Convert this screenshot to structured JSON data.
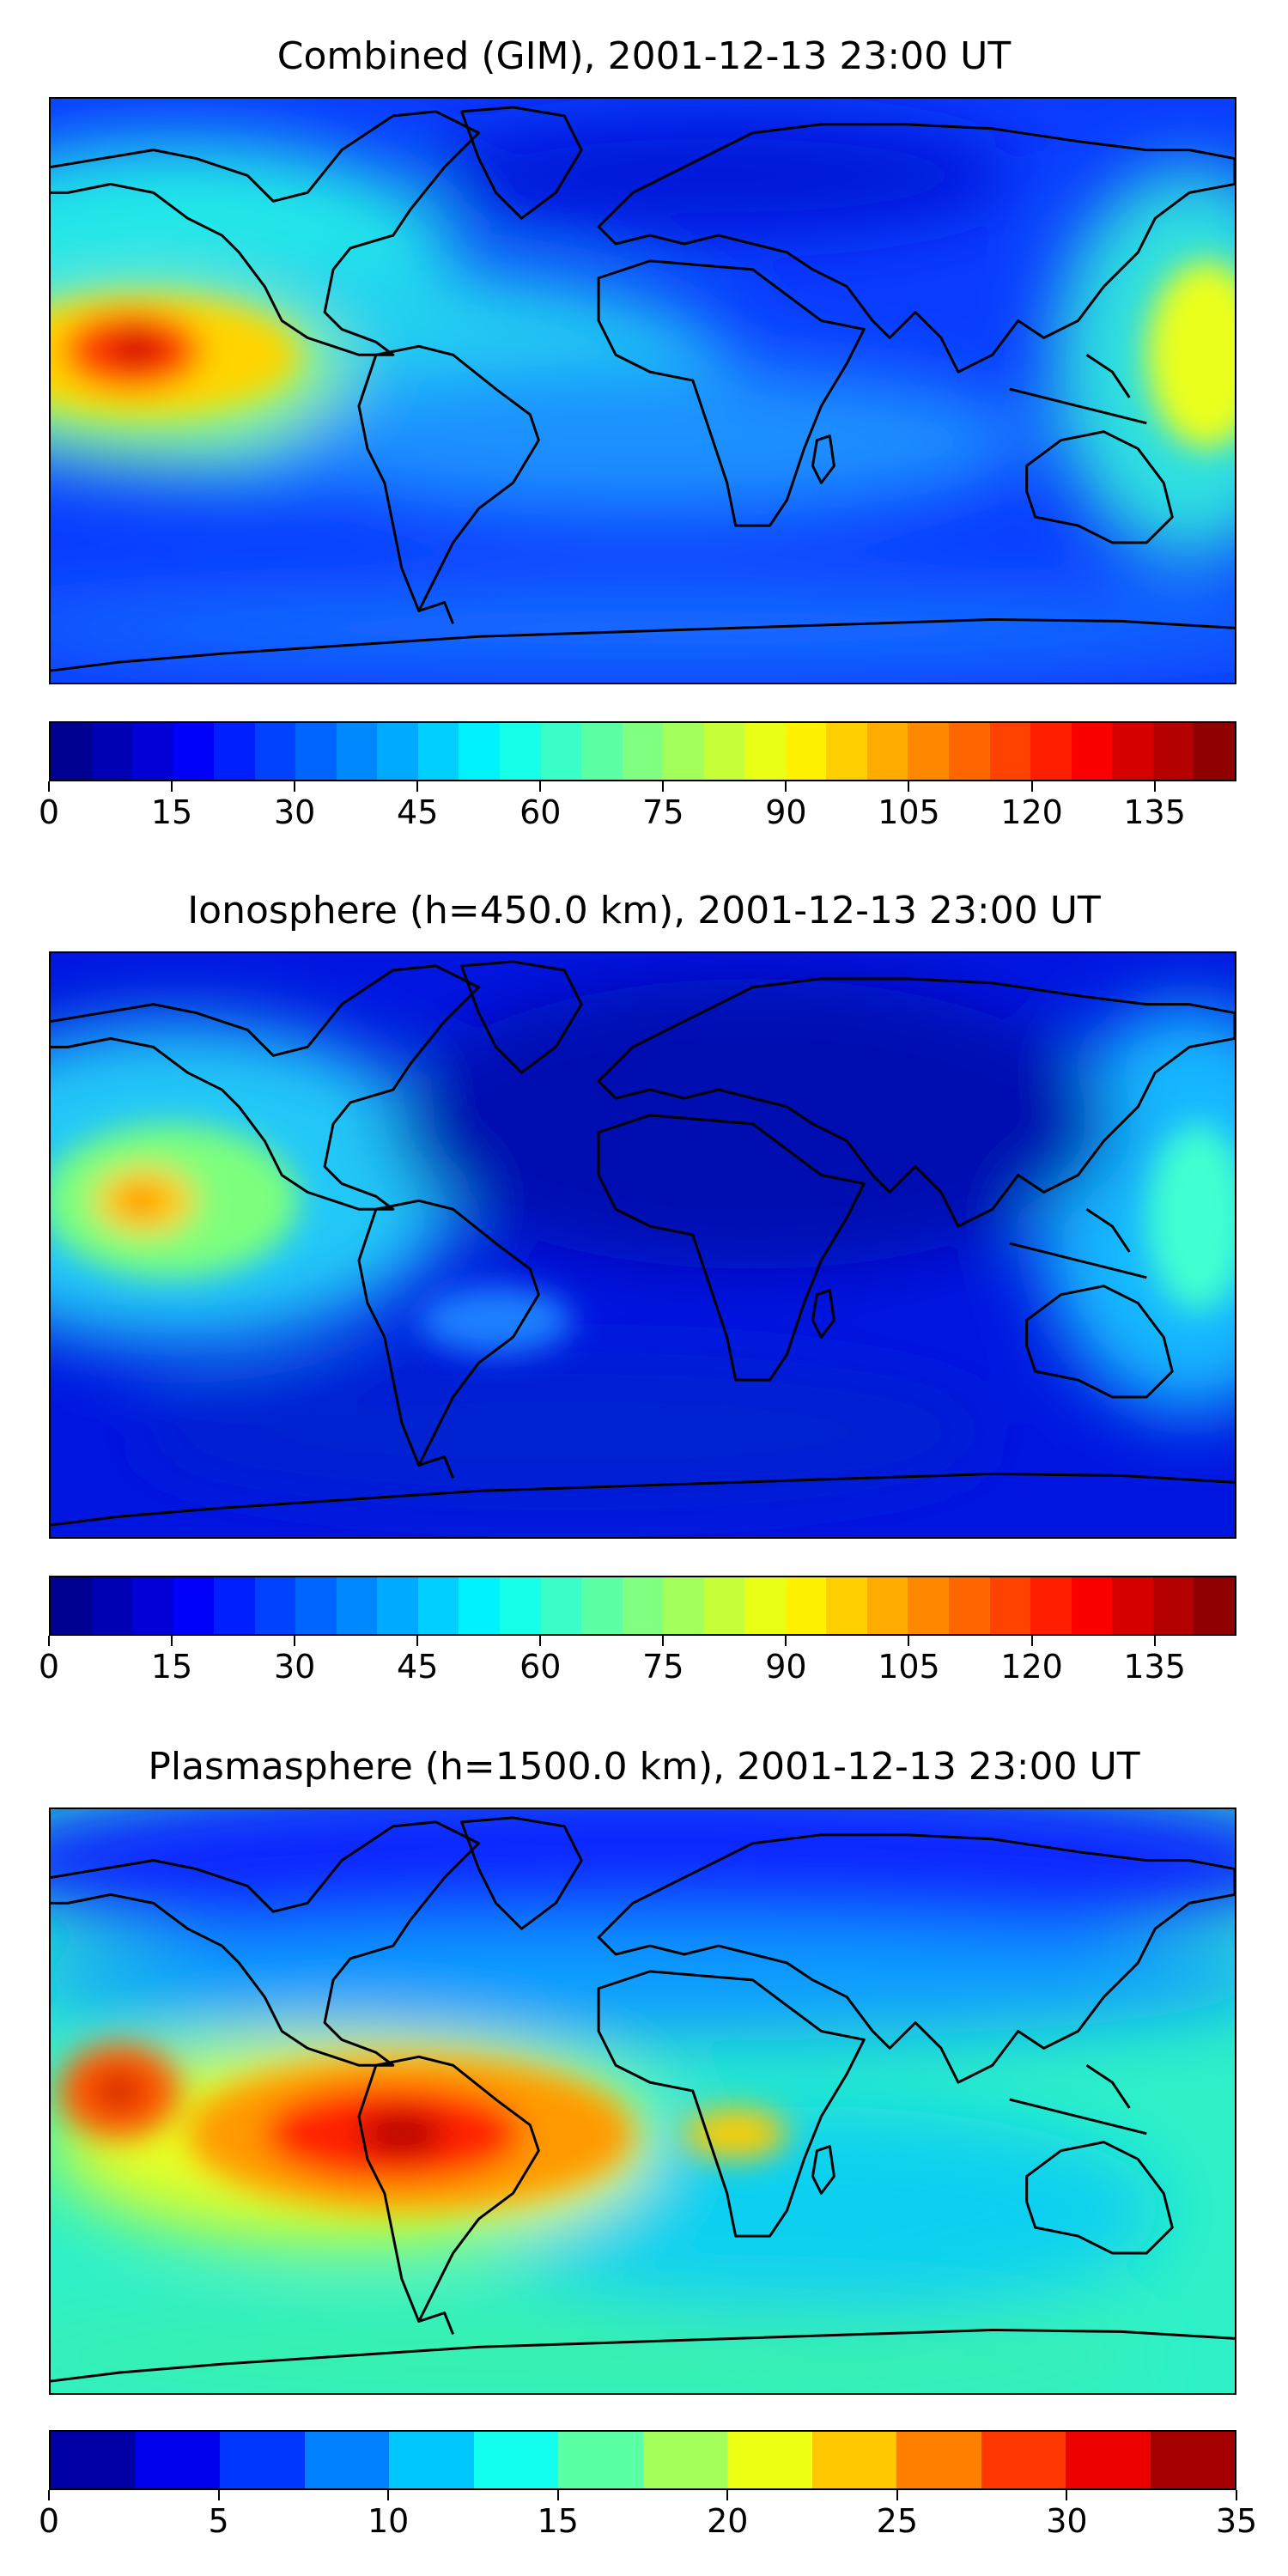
{
  "figure": {
    "panels": [
      {
        "title": "Combined (GIM), 2001-12-13 23:00 UT",
        "colorbar": {
          "min": 0,
          "max": 145,
          "levels": 29,
          "ticks": [
            "0",
            "15",
            "30",
            "45",
            "60",
            "75",
            "90",
            "105",
            "120",
            "135"
          ],
          "tick_values": [
            0,
            15,
            30,
            45,
            60,
            75,
            90,
            105,
            120,
            135
          ]
        }
      },
      {
        "title": "Ionosphere  (h=450.0 km), 2001-12-13 23:00 UT",
        "colorbar": {
          "min": 0,
          "max": 145,
          "levels": 29,
          "ticks": [
            "0",
            "15",
            "30",
            "45",
            "60",
            "75",
            "90",
            "105",
            "120",
            "135"
          ],
          "tick_values": [
            0,
            15,
            30,
            45,
            60,
            75,
            90,
            105,
            120,
            135
          ]
        }
      },
      {
        "title": "Plasmasphere (h=1500.0 km), 2001-12-13 23:00 UT",
        "colorbar": {
          "min": 0,
          "max": 35,
          "levels": 14,
          "ticks": [
            "0",
            "5",
            "10",
            "15",
            "20",
            "25",
            "30",
            "35"
          ],
          "tick_values": [
            0,
            5,
            10,
            15,
            20,
            25,
            30,
            35
          ]
        }
      }
    ],
    "colormap": "jet",
    "projection": "plate-carree",
    "coastlines": true
  }
}
